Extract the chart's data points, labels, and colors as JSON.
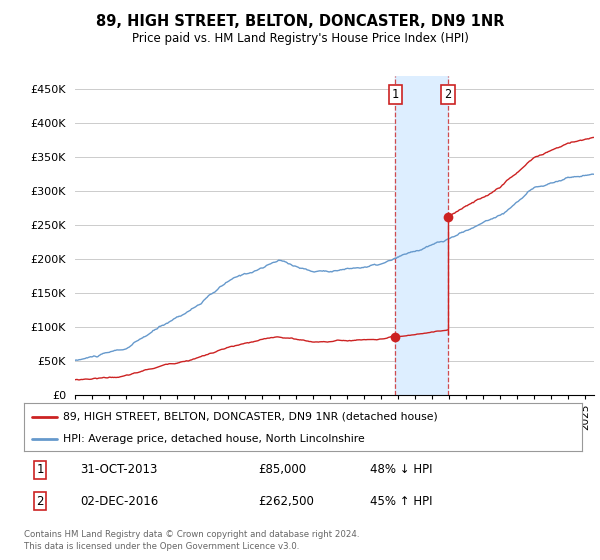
{
  "title": "89, HIGH STREET, BELTON, DONCASTER, DN9 1NR",
  "subtitle": "Price paid vs. HM Land Registry's House Price Index (HPI)",
  "ylabel_ticks": [
    "£0",
    "£50K",
    "£100K",
    "£150K",
    "£200K",
    "£250K",
    "£300K",
    "£350K",
    "£400K",
    "£450K"
  ],
  "ytick_values": [
    0,
    50000,
    100000,
    150000,
    200000,
    250000,
    300000,
    350000,
    400000,
    450000
  ],
  "ylim": [
    0,
    470000
  ],
  "xlim_start": 1995.0,
  "xlim_end": 2025.5,
  "hpi_color": "#6699cc",
  "price_color": "#cc2222",
  "purchase1_date": 2013.83,
  "purchase1_price": 85000,
  "purchase2_date": 2016.92,
  "purchase2_price": 262500,
  "legend_line1": "89, HIGH STREET, BELTON, DONCASTER, DN9 1NR (detached house)",
  "legend_line2": "HPI: Average price, detached house, North Lincolnshire",
  "footnote1": "Contains HM Land Registry data © Crown copyright and database right 2024.",
  "footnote2": "This data is licensed under the Open Government Licence v3.0.",
  "background_color": "#ffffff",
  "plot_bg_color": "#ffffff",
  "grid_color": "#cccccc",
  "highlight_color": "#ddeeff"
}
